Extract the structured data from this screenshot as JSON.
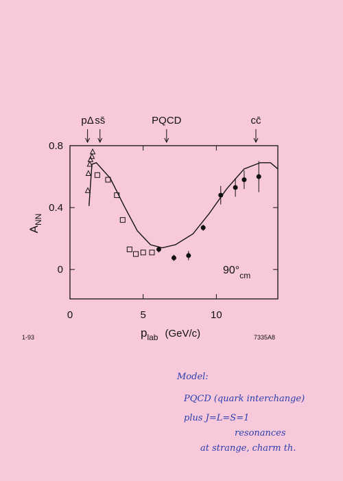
{
  "chart_data": {
    "type": "scatter",
    "ylabel": [
      "A",
      "NN"
    ],
    "xlabel": [
      "p",
      "lab",
      "(GeV/c)"
    ],
    "xlim": [
      0,
      14.2
    ],
    "ylim": [
      -0.19,
      0.8
    ],
    "xticks": [
      0,
      5,
      10
    ],
    "yticks": [
      0,
      0.4,
      0.8
    ],
    "color": "#111111",
    "annotations": [
      {
        "label": "pΔ",
        "x": 1.2
      },
      {
        "label": "ss̄",
        "x": 2.05
      },
      {
        "label": "PQCD",
        "x": 6.6
      },
      {
        "label": "cc̄",
        "x": 12.7
      }
    ],
    "angle_label": [
      "90°",
      "cm"
    ],
    "series": [
      {
        "marker": "triangle",
        "x": [
          1.22,
          1.26,
          1.35,
          1.4,
          1.5,
          1.55
        ],
        "values": [
          0.51,
          0.62,
          0.68,
          0.71,
          0.73,
          0.76
        ]
      },
      {
        "marker": "square",
        "x": [
          1.87,
          2.6,
          3.2,
          3.6,
          4.07,
          4.5,
          5.0,
          5.6
        ],
        "values": [
          0.61,
          0.58,
          0.48,
          0.32,
          0.13,
          0.1,
          0.11,
          0.11
        ]
      },
      {
        "marker": "circle",
        "x": [
          6.07,
          7.1,
          8.1,
          9.1,
          10.3,
          11.3,
          11.9,
          12.9
        ],
        "values": [
          0.13,
          0.075,
          0.09,
          0.27,
          0.48,
          0.53,
          0.58,
          0.6
        ],
        "errors": [
          0.02,
          0.02,
          0.03,
          0.02,
          0.06,
          0.06,
          0.06,
          0.1
        ]
      },
      {
        "marker": "line",
        "x": [
          1.3,
          1.5,
          1.8,
          2.75,
          3.7,
          4.6,
          5.5,
          6.3,
          7.2,
          8.4,
          9.5,
          10.7,
          11.9,
          13.0,
          13.7,
          14.2
        ],
        "values": [
          0.41,
          0.68,
          0.69,
          0.59,
          0.41,
          0.25,
          0.16,
          0.14,
          0.16,
          0.23,
          0.36,
          0.52,
          0.65,
          0.69,
          0.69,
          0.65
        ]
      }
    ]
  },
  "footer": {
    "date": "1-93",
    "code": "7335A8"
  },
  "handwriting": [
    "Model:",
    "PQCD  (quark interchange)",
    "plus   J=L=S=1",
    "resonances",
    "at   strange, charm th."
  ]
}
